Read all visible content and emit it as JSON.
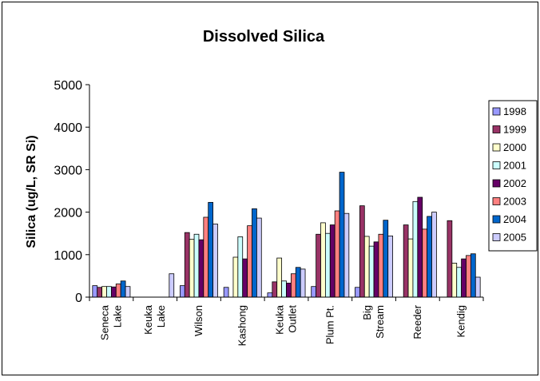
{
  "chart_data": {
    "type": "bar",
    "title": "Dissolved Silica",
    "xlabel": "",
    "ylabel": "Silica (ug/L, SR Si)",
    "ylim": [
      0,
      5000
    ],
    "yticks": [
      0,
      1000,
      2000,
      3000,
      4000,
      5000
    ],
    "ytick_labels": [
      "0",
      "1000",
      "2000",
      "3000",
      "4000",
      "5000"
    ],
    "grid": false,
    "legend_position": "right",
    "categories": [
      [
        "Seneca",
        "Lake"
      ],
      [
        "Keuka",
        "Lake"
      ],
      [
        "Wilson"
      ],
      [
        "Kashong"
      ],
      [
        "Keuka",
        "Outlet"
      ],
      [
        "Plum Pt."
      ],
      [
        "Big",
        "Stream"
      ],
      [
        "Reeder"
      ],
      [
        "Kendig"
      ]
    ],
    "series": [
      {
        "name": "1998",
        "color": "#9999ff",
        "values": [
          270,
          0,
          270,
          230,
          100,
          250,
          230,
          null,
          null
        ]
      },
      {
        "name": "1999",
        "color": "#993366",
        "values": [
          230,
          0,
          1520,
          null,
          360,
          1480,
          2150,
          1700,
          1800
        ]
      },
      {
        "name": "2000",
        "color": "#ffffcc",
        "values": [
          250,
          0,
          1360,
          940,
          920,
          1750,
          1430,
          1370,
          800
        ]
      },
      {
        "name": "2001",
        "color": "#ccffff",
        "values": [
          250,
          0,
          1480,
          1420,
          380,
          1500,
          1200,
          2250,
          700
        ]
      },
      {
        "name": "2002",
        "color": "#660066",
        "values": [
          240,
          0,
          1350,
          900,
          330,
          1700,
          1300,
          2350,
          900
        ]
      },
      {
        "name": "2003",
        "color": "#ff8080",
        "values": [
          310,
          0,
          1880,
          1680,
          550,
          2030,
          1480,
          1600,
          980
        ]
      },
      {
        "name": "2004",
        "color": "#0066cc",
        "values": [
          380,
          0,
          2230,
          2080,
          700,
          2940,
          1810,
          1900,
          1020
        ]
      },
      {
        "name": "2005",
        "color": "#ccccff",
        "values": [
          250,
          550,
          1720,
          1860,
          660,
          1970,
          1440,
          2000,
          470
        ]
      }
    ]
  }
}
